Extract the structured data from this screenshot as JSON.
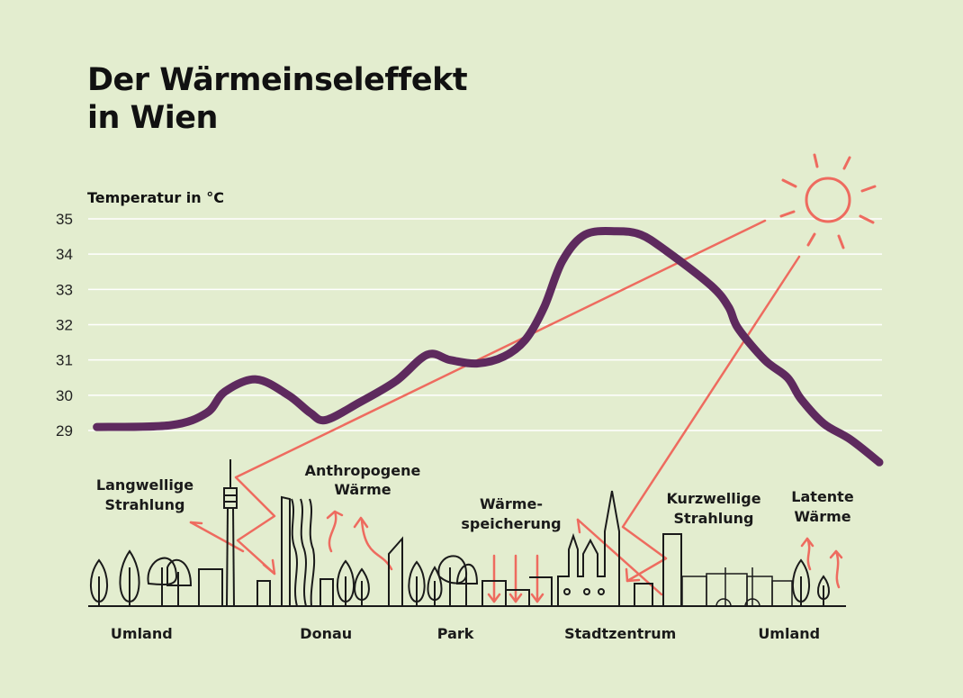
{
  "title_line1": "Der Wärmeinseleffekt",
  "title_line2": "in Wien",
  "colors": {
    "background": "#e3edcf",
    "curve": "#5e2a5e",
    "accent": "#ee6b5f",
    "tree_yellow": "#f2ee9c",
    "tree_green": "#9ed3a6"
  },
  "annotations": {
    "langwellig": [
      "Langwellige",
      "Strahlung"
    ],
    "anthropogen": [
      "Anthropogene",
      "Wärme"
    ],
    "speicherung": [
      "Wärme-",
      "speicherung"
    ],
    "kurzwellig": [
      "Kurzwellige",
      "Strahlung"
    ],
    "latent": [
      "Latente",
      "Wärme"
    ]
  },
  "chart_data": {
    "type": "line",
    "title": "Der Wärmeinseleffekt in Wien",
    "ylabel": "Temperatur in °C",
    "xlabel": "",
    "ylim": [
      29,
      35
    ],
    "yticks": [
      35,
      34,
      33,
      32,
      31,
      30,
      29
    ],
    "grid": true,
    "xlim": [
      0,
      100
    ],
    "x_categories": [
      {
        "label": "Umland",
        "x": 6
      },
      {
        "label": "Donau",
        "x": 29.5
      },
      {
        "label": "Park",
        "x": 46
      },
      {
        "label": "Stadtzentrum",
        "x": 67
      },
      {
        "label": "Umland",
        "x": 88.5
      }
    ],
    "series": [
      {
        "name": "Temperatur",
        "x": [
          0.3,
          9.7,
          14.3,
          16.6,
          20.6,
          24.7,
          27.5,
          29.5,
          33.8,
          38.4,
          42.4,
          45.3,
          48.7,
          52.2,
          55.0,
          57.3,
          59.6,
          62.5,
          66.5,
          69.6,
          72.8,
          78.6,
          80.8,
          82.0,
          85.4,
          88.3,
          90.0,
          92.9,
          96.3,
          100
        ],
        "y": [
          29.1,
          29.15,
          29.5,
          30.1,
          30.45,
          30.0,
          29.5,
          29.3,
          29.8,
          30.4,
          31.15,
          31.0,
          30.9,
          31.1,
          31.6,
          32.5,
          33.8,
          34.55,
          34.65,
          34.55,
          34.1,
          33.1,
          32.5,
          31.9,
          31.0,
          30.5,
          29.9,
          29.2,
          28.75,
          28.1
        ]
      }
    ]
  }
}
